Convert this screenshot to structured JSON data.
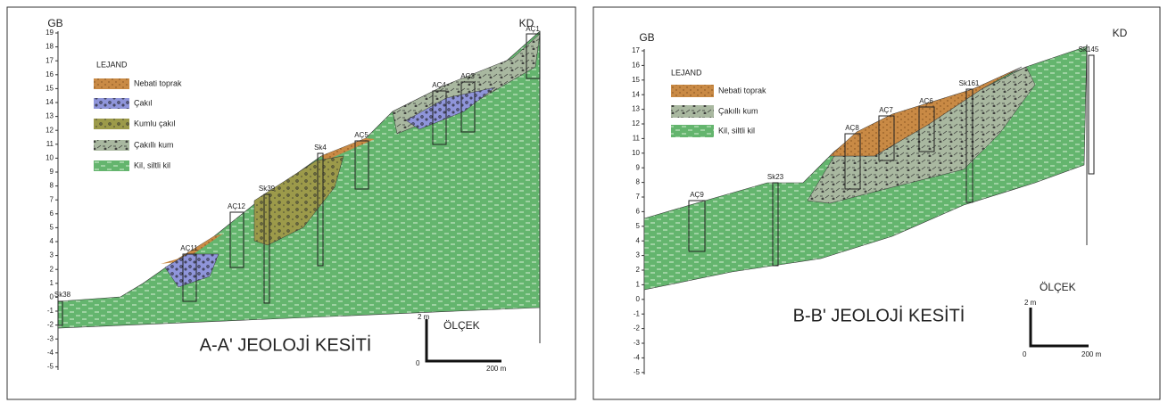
{
  "panels": [
    {
      "title": "A-A' JEOLOJİ KESİTİ",
      "left_label": "GB",
      "right_label": "KD",
      "axis_ticks": [
        19,
        18,
        17,
        16,
        15,
        14,
        13,
        12,
        11,
        10,
        9,
        8,
        7,
        6,
        5,
        4,
        3,
        2,
        1,
        0,
        -1,
        -2,
        -3,
        -4,
        -5
      ],
      "legend": {
        "title": "LEJAND",
        "items": [
          "Nebati toprak",
          "Çakıl",
          "Kumlu çakıl",
          "Çakıllı kum",
          "Kil, siltli kil"
        ]
      },
      "boreholes": [
        "AÇ11",
        "AÇ12",
        "Sk39",
        "Sk4",
        "AÇ5",
        "AÇ4",
        "AÇ3",
        "AÇ1",
        "Sk38"
      ],
      "scale": {
        "title": "ÖLÇEK",
        "vertical": "2 m",
        "origin": "0",
        "horizontal": "200 m"
      }
    },
    {
      "title": "B-B' JEOLOJİ KESİTİ",
      "left_label": "GB",
      "right_label": "KD",
      "axis_ticks": [
        17,
        16,
        15,
        14,
        13,
        12,
        11,
        10,
        9,
        8,
        7,
        6,
        5,
        4,
        3,
        2,
        1,
        0,
        -1,
        -2,
        -3,
        -4,
        -5
      ],
      "legend": {
        "title": "LEJAND",
        "items": [
          "Nebati toprak",
          "Çakıllı kum",
          "Kil, siltli kil"
        ]
      },
      "boreholes": [
        "AÇ9",
        "Sk23",
        "AÇ8",
        "AÇ7",
        "AÇ6",
        "Sk161",
        "Sk145"
      ],
      "scale": {
        "title": "ÖLÇEK",
        "vertical": "2 m",
        "origin": "0",
        "horizontal": "200 m"
      }
    }
  ]
}
